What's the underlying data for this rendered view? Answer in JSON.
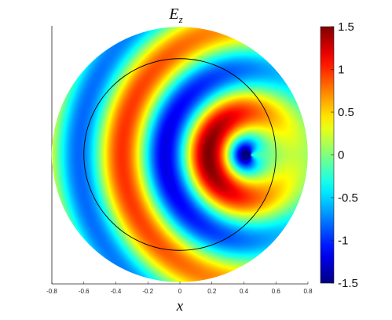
{
  "chart_data": {
    "type": "heatmap",
    "title": "E",
    "title_subscript": "z",
    "xlabel": "x",
    "ylabel": "",
    "domain": "disk",
    "disk_radius": 0.8,
    "inner_circle_radius": 0.6,
    "xlim": [
      -0.8,
      0.8
    ],
    "xticks": [
      "-0.8",
      "-0.6",
      "-0.4",
      "-0.2",
      "0",
      "0.2",
      "0.4",
      "0.6",
      "0.8"
    ],
    "colormap": "jet",
    "clim": [
      -1.5,
      1.5
    ],
    "colorbar": {
      "ticks": [
        1.5,
        1,
        0.5,
        0,
        -0.5,
        -1,
        -1.5
      ],
      "tick_labels": [
        "1.5",
        "1",
        "0.5",
        "0",
        "-0.5",
        "-1",
        "-1.5"
      ]
    },
    "field_features": {
      "source_center": [
        0.44,
        0.0
      ],
      "min_value_at_source": -1.5,
      "max_lobe_x": 0.22,
      "max_lobe_value": 1.5,
      "wavefront_maxima_x_on_axis": [
        0.22,
        -0.33,
        0.75
      ],
      "wavefront_minima_x_on_axis": [
        0.44,
        -0.02,
        -0.6
      ]
    },
    "grid": false,
    "legend": "none",
    "colors": {
      "axis": "#222222",
      "circle": "#000000"
    }
  }
}
